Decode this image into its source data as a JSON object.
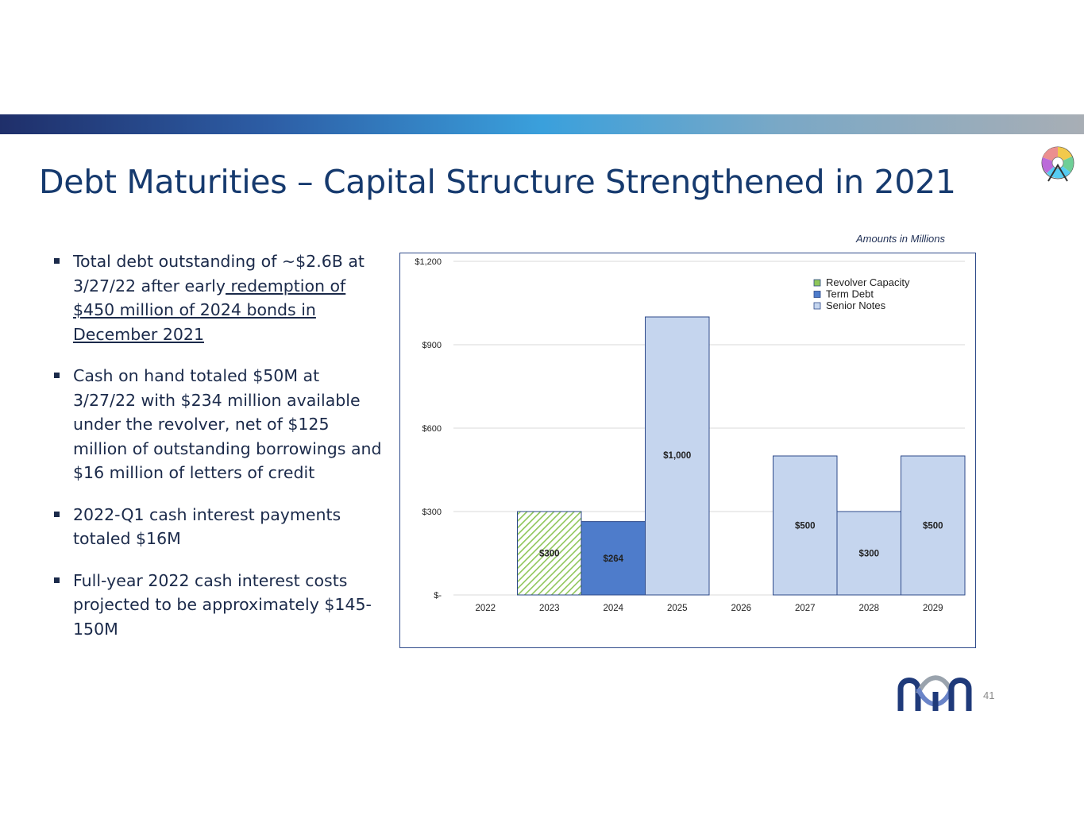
{
  "slide": {
    "title": "Debt Maturities – Capital Structure Strengthened in 2021",
    "page_number": "41",
    "amounts_note": "Amounts in Millions"
  },
  "bullets": [
    {
      "text_pre": "Total debt outstanding of ~$2.6B at 3/27/22 after early",
      "text_link": " redemption of $450 million of 2024 bonds in December 2021"
    },
    {
      "text": "Cash on hand totaled $50M at 3/27/22 with $234 million available under the revolver, net of $125 million of outstanding borrowings and $16 million of letters of credit"
    },
    {
      "text": "2022-Q1 cash interest payments totaled $16M"
    },
    {
      "text": "Full-year 2022 cash interest costs projected to be approximately $145-150M"
    }
  ],
  "colors": {
    "title": "#163a6e",
    "revolver": "#8fc65a",
    "term_debt": "#4e7ccb",
    "senior_notes": "#c5d5ee",
    "bar_border": "#2e4a8a"
  },
  "chart_data": {
    "type": "bar",
    "stacked": true,
    "categories": [
      "2022",
      "2023",
      "2024",
      "2025",
      "2026",
      "2027",
      "2028",
      "2029"
    ],
    "series": [
      {
        "name": "Revolver Capacity",
        "values": [
          0,
          300,
          0,
          0,
          0,
          0,
          0,
          0
        ],
        "color": "#8fc65a",
        "pattern": "hatched"
      },
      {
        "name": "Term Debt",
        "values": [
          0,
          0,
          264,
          0,
          0,
          0,
          0,
          0
        ],
        "color": "#4e7ccb"
      },
      {
        "name": "Senior Notes",
        "values": [
          0,
          0,
          0,
          1000,
          0,
          500,
          300,
          500
        ],
        "color": "#c5d5ee"
      }
    ],
    "data_labels": [
      "",
      "$300",
      "$264",
      "$1,000",
      "",
      "$500",
      "$300",
      "$500"
    ],
    "y_ticks": [
      0,
      300,
      600,
      900,
      1200
    ],
    "y_tick_labels": [
      "$-",
      "$300",
      "$600",
      "$900",
      "$1,200"
    ],
    "ylim": [
      0,
      1200
    ],
    "grid": true,
    "legend_position": "top-right"
  }
}
